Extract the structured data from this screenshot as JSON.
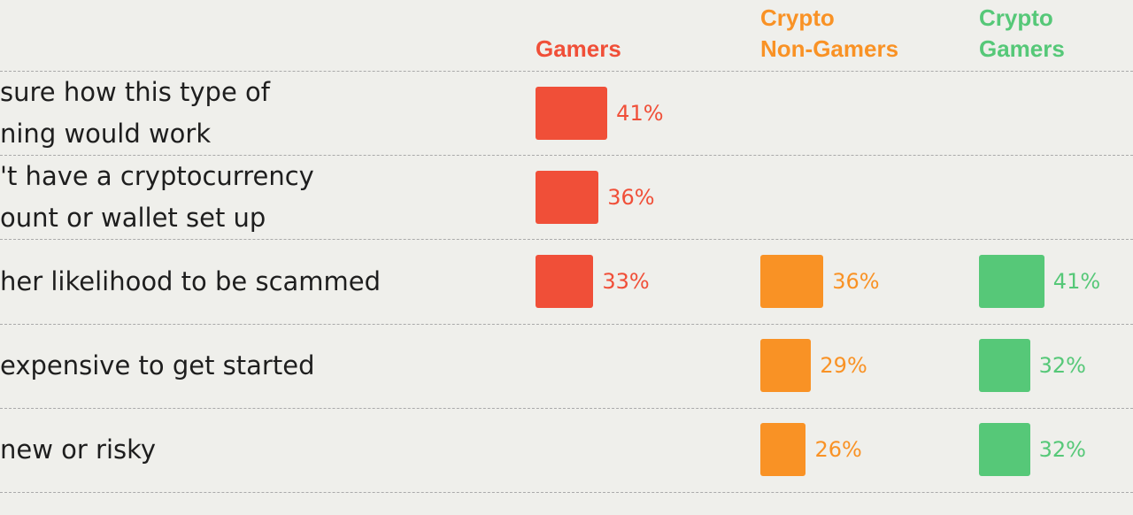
{
  "chart_data": {
    "type": "bar",
    "series": [
      {
        "name": "Gamers",
        "color": "#f04f38",
        "values": [
          41,
          36,
          33,
          null,
          null
        ]
      },
      {
        "name": "Crypto Non-Gamers",
        "color": "#f99225",
        "values": [
          null,
          null,
          36,
          29,
          26
        ]
      },
      {
        "name": "Crypto Gamers",
        "color": "#56c878",
        "values": [
          null,
          null,
          41,
          32,
          32
        ]
      }
    ],
    "headers": [
      [
        "Gamers"
      ],
      [
        "Crypto",
        "Non-Gamers"
      ],
      [
        "Crypto",
        "Gamers"
      ]
    ],
    "categories": [
      [
        "sure how this type of",
        "ning would work"
      ],
      [
        "'t have a cryptocurrency",
        "ount or wallet set up"
      ],
      [
        "her likelihood to be scammed"
      ],
      [
        "expensive to get started"
      ],
      [
        "new or risky"
      ]
    ],
    "value_suffix": "%",
    "grid": "dashed horizontal row separators",
    "legend": "column headers at top"
  }
}
